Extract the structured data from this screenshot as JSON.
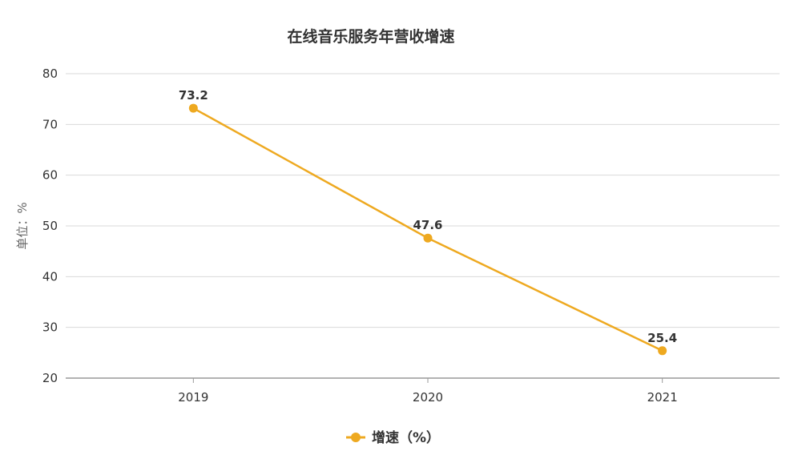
{
  "chart_data": {
    "type": "line",
    "title": "在线音乐服务年营收增速",
    "ylabel": "单位：%",
    "xlabel": "",
    "categories": [
      "2019",
      "2020",
      "2021"
    ],
    "series": [
      {
        "name": "增速（%）",
        "values": [
          73.2,
          47.6,
          25.4
        ],
        "color": "#EEA920"
      }
    ],
    "ylim": [
      20,
      80
    ],
    "yticks": [
      20,
      30,
      40,
      50,
      60,
      70,
      80
    ],
    "grid": true,
    "legend_position": "bottom-center",
    "colors": {
      "grid": "#D9D9D9",
      "axis": "#999999",
      "text": "#333333"
    }
  }
}
